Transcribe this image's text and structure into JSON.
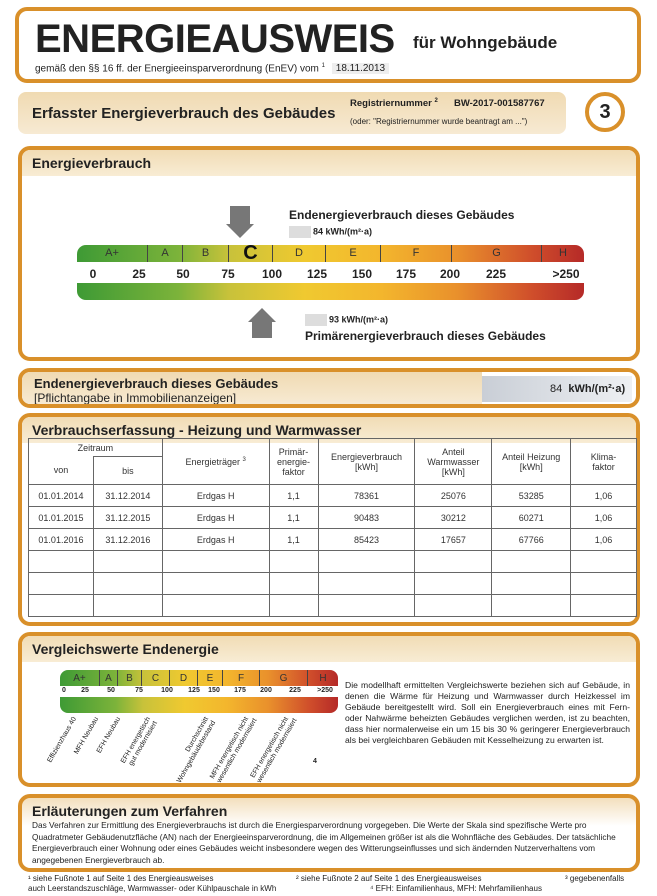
{
  "header": {
    "title": "ENERGIEAUSWEIS",
    "subtitle": "für Wohngebäude",
    "basis": "gemäß den §§ 16 ff. der Energieeinsparverordnung (EnEV) vom",
    "basis_sup": "1",
    "date": "18.11.2013"
  },
  "section": {
    "title": "Erfasster Energieverbrauch des Gebäudes",
    "reg_label": "Registriernummer",
    "reg_sup": "2",
    "reg_number": "BW-2017-001587767",
    "reg_note": "(oder: \"Registriernummer wurde beantragt am ...\")",
    "page": "3"
  },
  "verbrauch": {
    "title": "Energieverbrauch",
    "end_label": "Endenergieverbrauch dieses Gebäudes",
    "end_value": "84",
    "unit": "kWh/(m²·a)",
    "prim_label": "Primärenergieverbrauch dieses Gebäudes",
    "prim_value": "93",
    "classes": [
      "A+",
      "A",
      "B",
      "C",
      "D",
      "E",
      "F",
      "G",
      "H"
    ],
    "ticks": [
      "0",
      "25",
      "50",
      "75",
      "100",
      "125",
      "150",
      "175",
      "200",
      "225",
      ">250"
    ],
    "active_class": "C"
  },
  "pflicht": {
    "title": "Endenergieverbrauch dieses Gebäudes",
    "note": "[Pflichtangabe in Immobilienanzeigen]",
    "value": "84",
    "unit": "kWh/(m²·a)"
  },
  "erfassung": {
    "title": "Verbrauchserfassung - Heizung und Warmwasser",
    "headers": {
      "zeitraum": "Zeitraum",
      "von": "von",
      "bis": "bis",
      "traeger": "Energieträger",
      "traeger_sup": "3",
      "primaer": "Primär-\nenergie-\nfaktor",
      "verbrauch": "Energieverbrauch\n[kWh]",
      "warmwasser": "Anteil\nWarmwasser\n[kWh]",
      "heizung": "Anteil Heizung\n[kWh]",
      "klima": "Klima-\nfaktor"
    },
    "rows": [
      [
        "01.01.2014",
        "31.12.2014",
        "Erdgas H",
        "1,1",
        "78361",
        "25076",
        "53285",
        "1,06"
      ],
      [
        "01.01.2015",
        "31.12.2015",
        "Erdgas H",
        "1,1",
        "90483",
        "30212",
        "60271",
        "1,06"
      ],
      [
        "01.01.2016",
        "31.12.2016",
        "Erdgas H",
        "1,1",
        "85423",
        "17657",
        "67766",
        "1,06"
      ],
      [
        "",
        "",
        "",
        "",
        "",
        "",
        "",
        ""
      ],
      [
        "",
        "",
        "",
        "",
        "",
        "",
        "",
        ""
      ],
      [
        "",
        "",
        "",
        "",
        "",
        "",
        "",
        ""
      ]
    ]
  },
  "vergleich": {
    "title": "Vergleichswerte Endenergie",
    "refs": [
      "Effizienzhaus 40",
      "MFH Neubau",
      "EFH Neubau",
      "EFH energetisch\ngut modernisiert",
      "Durchschnitt\nWohngebäudebestand",
      "MFH energetisch nicht\nwesentlich modernisiert",
      "EFH energetisch nicht\nwesentlich modernisiert"
    ],
    "footnote_mark": "4",
    "text": "Die modellhaft ermittelten Vergleichswerte beziehen sich auf Gebäude, in denen die Wärme für Heizung und Warmwasser durch Heizkessel im Gebäude bereitgestellt wird. Soll ein Energieverbrauch eines mit Fern- oder Nahwärme beheizten Gebäudes verglichen werden, ist zu beachten, dass hier normalerweise ein um 15 bis 30 % geringerer Energieverbrauch als bei vergleichbaren Gebäuden mit Kesselheizung zu erwarten ist."
  },
  "erlaeuterung": {
    "title": "Erläuterungen zum Verfahren",
    "text": "Das Verfahren zur Ermittlung des Energieverbrauchs ist durch die Energiesparverordnung vorgegeben. Die Werte der Skala sind spezifische Werte pro Quadratmeter Gebäudenutzfläche (AN) nach der Energieeinsparverordnung, die im Allgemeinen größer ist als die Wohnfläche des Gebäudes. Der tatsächliche Energieverbrauch einer Wohnung oder eines Gebäudes weicht insbesondere wegen des Witterungseinflusses und sich ändernden Nutzerverhaltens vom angegebenen Energieverbrauch ab."
  },
  "footnotes": {
    "f1": "¹ siehe Fußnote 1 auf Seite 1 des Energieausweises",
    "f2": "² siehe Fußnote 2 auf Seite 1 des Energieausweises",
    "f3": "³ gegebenenfalls",
    "f3b": "auch Leerstandszuschläge, Warmwasser- oder Kühlpauschale in kWh",
    "f4": "⁴ EFH: Einfamilienhaus, MFH: Mehrfamilienhaus"
  },
  "colors": {
    "border": "#d9902a",
    "header_bg": "#f1dcb5"
  }
}
